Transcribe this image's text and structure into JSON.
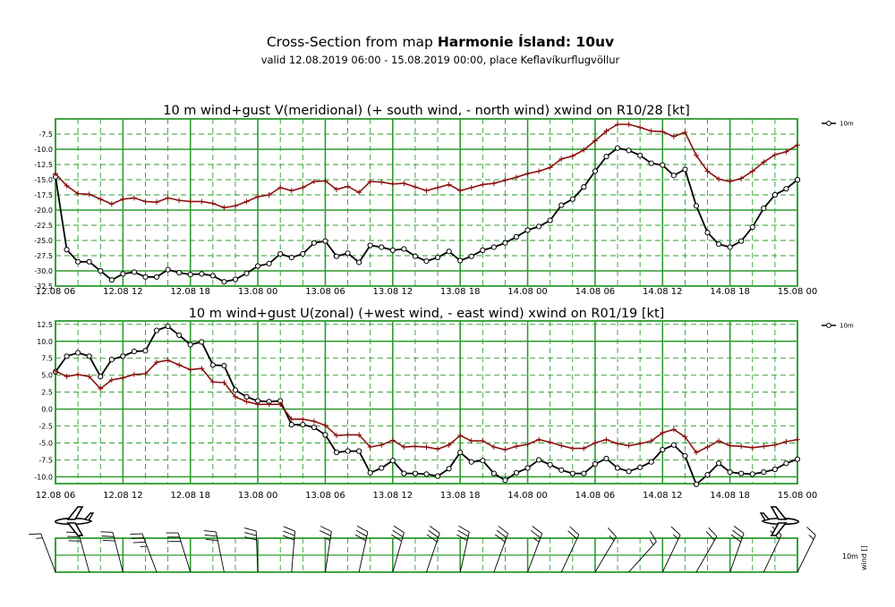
{
  "header": {
    "title_prefix": "Cross-Section from map",
    "title_bold": "Harmonie Ísland: 10uv",
    "subtitle": "valid 12.08.2019 06:00 - 15.08.2019 00:00, place Keflavíkurflugvöllur"
  },
  "wind_barb_panel": {
    "label": "10m",
    "side_label": "wind []",
    "plane_icon": "airplane-icon"
  },
  "colors": {
    "grid": "#2e9c2e",
    "wind": "#000000",
    "gust": "#8b1010"
  },
  "chart_data": [
    {
      "type": "line",
      "title": "10 m wind+gust V(meridional) (+ south wind, - north wind) xwind on R10/28 [kt]",
      "x_tick_labels": [
        "12.08 06",
        "12.08 12",
        "12.08 18",
        "13.08 00",
        "13.08 06",
        "13.08 12",
        "13.08 18",
        "14.08 00",
        "14.08 06",
        "14.08 12",
        "14.08 18",
        "15.08 00"
      ],
      "x_range_hours": [
        0,
        66
      ],
      "ylim": [
        -32.5,
        -5
      ],
      "yticks": [
        -32.5,
        -30,
        -27.5,
        -25,
        -22.5,
        -20,
        -17.5,
        -15,
        -12.5,
        -10,
        -7.5
      ],
      "ytick_labels": [
        "-32.5",
        "-30.0",
        "-27.5",
        "-25.0",
        "-22.5",
        "-20.0",
        "-17.5",
        "-15.0",
        "-12.5",
        "-10.0",
        "-7.5"
      ],
      "legend": {
        "label": "10m",
        "position": "right"
      },
      "series": [
        {
          "name": "10m",
          "marker": "circle",
          "values": [
            -14.5,
            -26.5,
            -28.5,
            -28.5,
            -30,
            -31.5,
            -30.5,
            -30.2,
            -31,
            -31,
            -29.8,
            -30.3,
            -30.6,
            -30.5,
            -30.8,
            -31.8,
            -31.4,
            -30.4,
            -29.2,
            -28.8,
            -27.2,
            -27.8,
            -27.2,
            -25.4,
            -25.1,
            -27.6,
            -27.1,
            -28.6,
            -25.8,
            -26.1,
            -26.6,
            -26.4,
            -27.6,
            -28.4,
            -27.8,
            -26.8,
            -28.3,
            -27.6,
            -26.6,
            -26.1,
            -25.4,
            -24.4,
            -23.3,
            -22.7,
            -21.7,
            -19.2,
            -18.2,
            -16.2,
            -13.6,
            -11.2,
            -9.8,
            -10.2,
            -11.0,
            -12.3,
            -12.6,
            -14.3,
            -13.3,
            -19.3,
            -23.7,
            -25.6,
            -26.1,
            -25.1,
            -22.8,
            -19.7,
            -17.5,
            -16.5,
            -15.0
          ]
        },
        {
          "name": "gust",
          "marker": "plus",
          "values": [
            -14.0,
            -16.0,
            -17.3,
            -17.4,
            -18.2,
            -19.0,
            -18.2,
            -18.0,
            -18.6,
            -18.7,
            -18.0,
            -18.4,
            -18.6,
            -18.6,
            -18.9,
            -19.6,
            -19.3,
            -18.6,
            -17.8,
            -17.5,
            -16.3,
            -16.8,
            -16.3,
            -15.3,
            -15.2,
            -16.6,
            -16.1,
            -17.1,
            -15.3,
            -15.4,
            -15.7,
            -15.6,
            -16.2,
            -16.8,
            -16.3,
            -15.8,
            -16.8,
            -16.3,
            -15.8,
            -15.6,
            -15.1,
            -14.6,
            -14.0,
            -13.6,
            -13.0,
            -11.6,
            -11.1,
            -10.1,
            -8.6,
            -7.0,
            -5.9,
            -5.9,
            -6.4,
            -7.0,
            -7.1,
            -7.9,
            -7.2,
            -11.0,
            -13.6,
            -14.9,
            -15.3,
            -14.8,
            -13.6,
            -12.1,
            -10.9,
            -10.4,
            -9.3
          ]
        }
      ]
    },
    {
      "type": "line",
      "title": "10 m wind+gust U(zonal) (+west wind, - east wind) xwind on R01/19 [kt]",
      "x_tick_labels": [
        "12.08 06",
        "12.08 12",
        "12.08 18",
        "13.08 00",
        "13.08 06",
        "13.08 12",
        "13.08 18",
        "14.08 00",
        "14.08 06",
        "14.08 12",
        "14.08 18",
        "15.08 00"
      ],
      "x_range_hours": [
        0,
        66
      ],
      "ylim": [
        -11,
        13
      ],
      "yticks": [
        -10,
        -7.5,
        -5,
        -2.5,
        0,
        2.5,
        5,
        7.5,
        10,
        12.5
      ],
      "ytick_labels": [
        "-10.0",
        "-7.5",
        "-5.0",
        "-2.5",
        "0.0",
        "2.5",
        "5.0",
        "7.5",
        "10.0",
        "12.5"
      ],
      "legend": {
        "label": "10m",
        "position": "right"
      },
      "series": [
        {
          "name": "10m",
          "marker": "circle",
          "values": [
            5.5,
            7.8,
            8.3,
            7.8,
            4.8,
            7.3,
            7.8,
            8.5,
            8.6,
            11.6,
            12.2,
            10.9,
            9.5,
            9.9,
            6.5,
            6.4,
            2.8,
            1.8,
            1.2,
            1.1,
            1.2,
            -2.3,
            -2.3,
            -2.7,
            -3.8,
            -6.4,
            -6.2,
            -6.2,
            -9.4,
            -8.7,
            -7.6,
            -9.5,
            -9.5,
            -9.6,
            -9.9,
            -8.8,
            -6.4,
            -7.8,
            -7.6,
            -9.5,
            -10.5,
            -9.4,
            -8.7,
            -7.5,
            -8.2,
            -9.0,
            -9.5,
            -9.5,
            -8.1,
            -7.3,
            -8.7,
            -9.2,
            -8.6,
            -7.8,
            -6.0,
            -5.3,
            -6.9,
            -11.1,
            -9.7,
            -8.0,
            -9.3,
            -9.5,
            -9.6,
            -9.3,
            -8.9,
            -8.0,
            -7.4
          ]
        },
        {
          "name": "gust",
          "marker": "plus",
          "values": [
            5.6,
            4.8,
            5.1,
            4.8,
            3.0,
            4.3,
            4.6,
            5.1,
            5.2,
            6.9,
            7.2,
            6.5,
            5.8,
            6.0,
            4.0,
            3.9,
            1.8,
            1.1,
            0.7,
            0.7,
            0.7,
            -1.5,
            -1.5,
            -1.8,
            -2.4,
            -3.9,
            -3.8,
            -3.8,
            -5.6,
            -5.3,
            -4.6,
            -5.6,
            -5.5,
            -5.6,
            -5.9,
            -5.3,
            -3.9,
            -4.7,
            -4.7,
            -5.6,
            -6.0,
            -5.5,
            -5.2,
            -4.5,
            -4.9,
            -5.4,
            -5.8,
            -5.8,
            -5.0,
            -4.5,
            -5.1,
            -5.4,
            -5.1,
            -4.7,
            -3.5,
            -3.0,
            -4.1,
            -6.4,
            -5.6,
            -4.7,
            -5.4,
            -5.5,
            -5.7,
            -5.5,
            -5.3,
            -4.8,
            -4.5
          ]
        }
      ]
    },
    {
      "type": "wind_barbs",
      "series_name": "10m",
      "x_range_hours": [
        0,
        66
      ],
      "u_from_chart": 1,
      "v_from_chart": 0
    }
  ]
}
